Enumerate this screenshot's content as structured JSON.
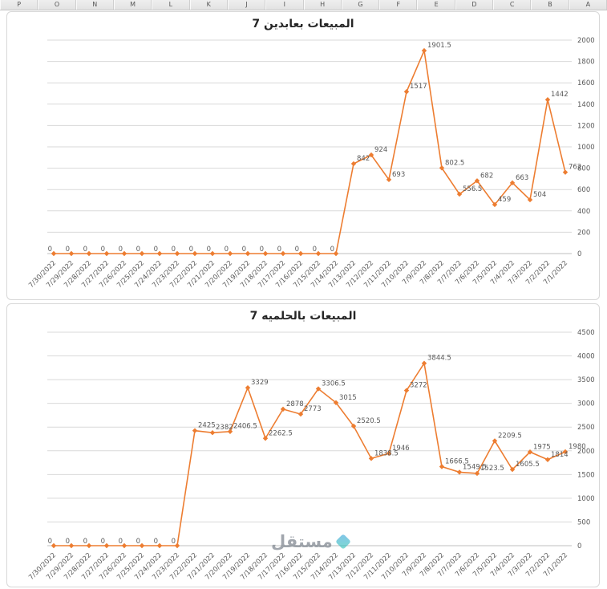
{
  "sheet": {
    "column_headers": [
      "P",
      "O",
      "N",
      "M",
      "L",
      "K",
      "J",
      "I",
      "H",
      "G",
      "F",
      "E",
      "D",
      "C",
      "B",
      "A"
    ]
  },
  "watermark": {
    "text": "مستقل"
  },
  "chart_data": [
    {
      "type": "line",
      "title": "المبيعات بعابدين 7",
      "x": [
        "7/30/2022",
        "7/29/2022",
        "7/28/2022",
        "7/27/2022",
        "7/26/2022",
        "7/25/2022",
        "7/24/2022",
        "7/23/2022",
        "7/22/2022",
        "7/21/2022",
        "7/20/2022",
        "7/19/2022",
        "7/18/2022",
        "7/17/2022",
        "7/16/2022",
        "7/15/2022",
        "7/14/2022",
        "7/13/2022",
        "7/12/2022",
        "7/11/2022",
        "7/10/2022",
        "7/9/2022",
        "7/8/2022",
        "7/7/2022",
        "7/6/2022",
        "7/5/2022",
        "7/4/2022",
        "7/3/2022",
        "7/2/2022",
        "7/1/2022"
      ],
      "values": [
        0,
        0,
        0,
        0,
        0,
        0,
        0,
        0,
        0,
        0,
        0,
        0,
        0,
        0,
        0,
        0,
        0,
        842,
        924,
        693,
        1517,
        1901.5,
        802.5,
        556.5,
        682,
        459,
        663,
        504,
        1442,
        762
      ],
      "ylim": [
        0,
        2000
      ],
      "ytick_step": 200,
      "yaxis_side": "right",
      "grid": true,
      "marker": "diamond",
      "line_color": "#ED7D31",
      "label_color": "#595959",
      "grid_color": "#d9d9d9",
      "axis_color": "#bfbfbf"
    },
    {
      "type": "line",
      "title": "المبيعات بالحلميه 7",
      "x": [
        "7/30/2022",
        "7/29/2022",
        "7/28/2022",
        "7/27/2022",
        "7/26/2022",
        "7/25/2022",
        "7/24/2022",
        "7/23/2022",
        "7/22/2022",
        "7/21/2022",
        "7/20/2022",
        "7/19/2022",
        "7/18/2022",
        "7/17/2022",
        "7/16/2022",
        "7/15/2022",
        "7/14/2022",
        "7/13/2022",
        "7/12/2022",
        "7/11/2022",
        "7/10/2022",
        "7/9/2022",
        "7/8/2022",
        "7/7/2022",
        "7/6/2022",
        "7/5/2022",
        "7/4/2022",
        "7/3/2022",
        "7/2/2022",
        "7/1/2022"
      ],
      "values": [
        0,
        0,
        0,
        0,
        0,
        0,
        0,
        0,
        2425,
        2382,
        2406.5,
        3329,
        2262.5,
        2878,
        2773,
        3306.5,
        3015,
        2520.5,
        1838.5,
        1946,
        3272,
        3844.5,
        1666.5,
        1549.5,
        1523.5,
        2209.5,
        1605.5,
        1975,
        1814,
        1980
      ],
      "ylim": [
        0,
        4500
      ],
      "ytick_step": 500,
      "yaxis_side": "right",
      "grid": true,
      "marker": "diamond",
      "line_color": "#ED7D31",
      "label_color": "#595959",
      "grid_color": "#d9d9d9",
      "axis_color": "#bfbfbf"
    }
  ]
}
